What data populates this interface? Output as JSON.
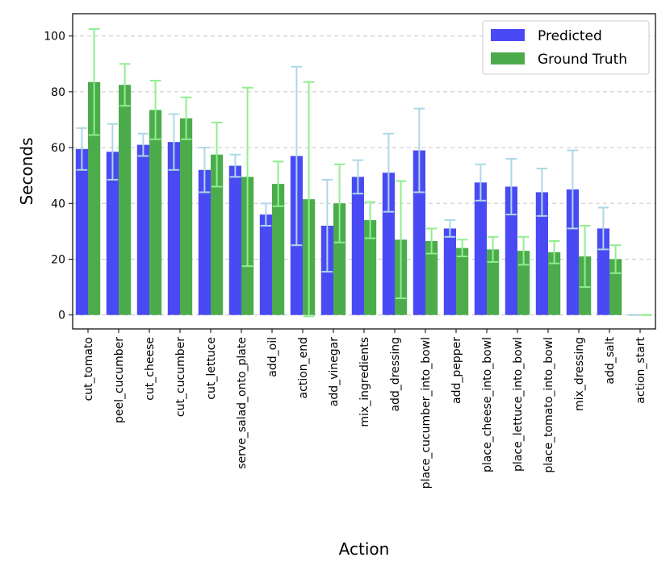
{
  "chart_data": {
    "type": "bar",
    "title": "",
    "xlabel": "Action",
    "ylabel": "Seconds",
    "ylim": [
      -5,
      108
    ],
    "yticks": [
      0,
      20,
      40,
      60,
      80,
      100
    ],
    "grid": "horizontal dashed",
    "legend_position": "top-right",
    "categories": [
      "cut_tomato",
      "peel_cucumber",
      "cut_cheese",
      "cut_cucumber",
      "cut_lettuce",
      "serve_salad_onto_plate",
      "add_oil",
      "action_end",
      "add_vinegar",
      "mix_ingredients",
      "add_dressing",
      "place_cucumber_into_bowl",
      "add_pepper",
      "place_cheese_into_bowl",
      "place_lettuce_into_bowl",
      "place_tomato_into_bowl",
      "mix_dressing",
      "add_salt",
      "action_start"
    ],
    "series": [
      {
        "name": "Predicted",
        "color": "#4a4af5",
        "error_color": "#add8e6",
        "values": [
          59.5,
          58.5,
          61,
          62,
          52,
          53.5,
          36,
          57,
          32,
          49.5,
          51,
          59,
          31,
          47.5,
          46,
          44,
          45,
          31,
          0
        ],
        "errors": [
          7.5,
          10,
          4,
          10,
          8,
          4,
          4,
          32,
          16.5,
          6,
          14,
          15,
          3,
          6.5,
          10,
          8.5,
          14,
          7.5,
          0
        ]
      },
      {
        "name": "Ground Truth",
        "color": "#4cac4c",
        "error_color": "#90ee90",
        "values": [
          83.5,
          82.5,
          73.5,
          70.5,
          57.5,
          49.5,
          47,
          41.5,
          40,
          34,
          27,
          26.5,
          24,
          23.5,
          23,
          22.5,
          21,
          20,
          0
        ],
        "errors": [
          19,
          7.5,
          10.5,
          7.5,
          11.5,
          32,
          8,
          42,
          14,
          6.5,
          21,
          4.5,
          3,
          4.5,
          5,
          4,
          11,
          5,
          0
        ]
      }
    ]
  }
}
